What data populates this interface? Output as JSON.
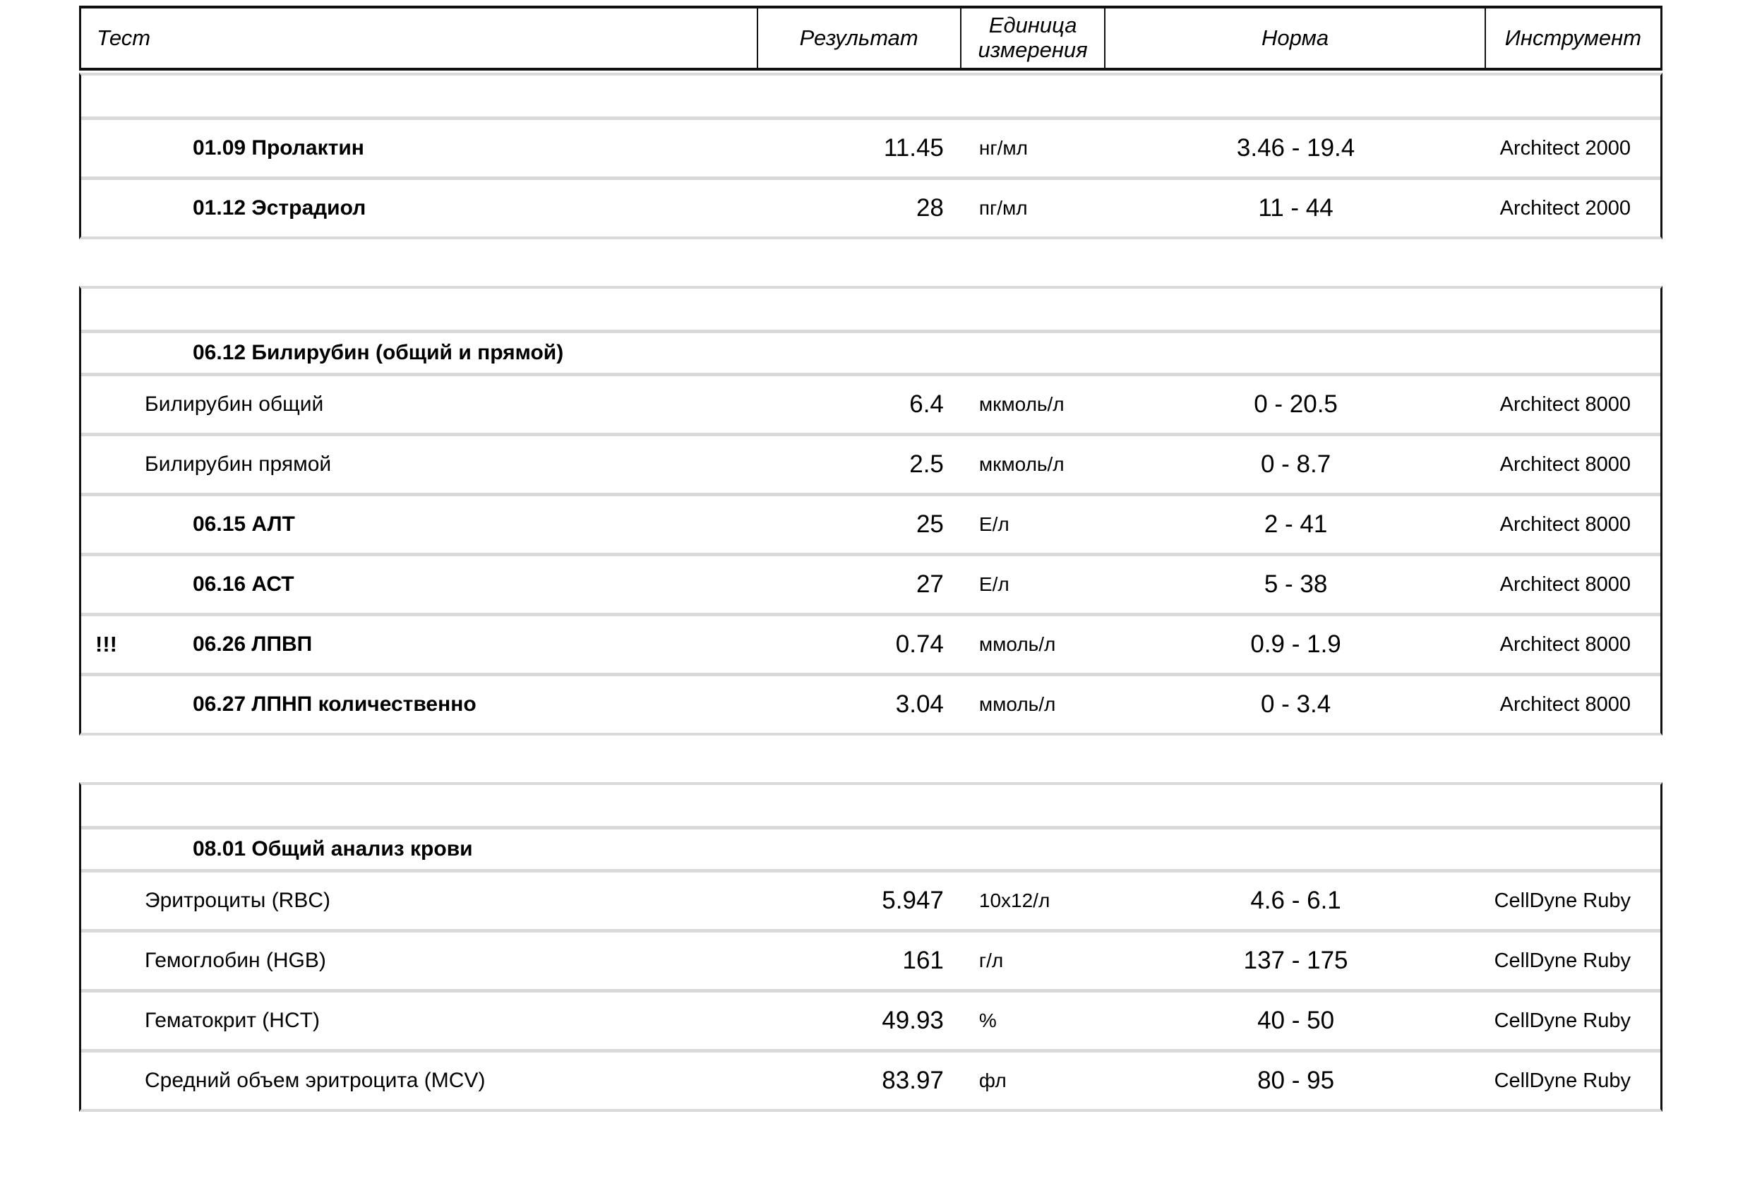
{
  "report": {
    "header": {
      "test": "Тест",
      "result": "Результат",
      "unit": "Единица измерения",
      "norm": "Норма",
      "instrument": "Инструмент"
    },
    "blocks": [
      {
        "rows": [
          {
            "type": "empty"
          },
          {
            "type": "test",
            "style": "code",
            "flag": "",
            "name": "01.09 Пролактин",
            "result": "11.45",
            "unit": "нг/мл",
            "norm": "3.46 - 19.4",
            "instrument": "Architect 2000"
          },
          {
            "type": "test",
            "style": "code",
            "flag": "",
            "name": "01.12 Эстрадиол",
            "result": "28",
            "unit": "пг/мл",
            "norm": "11 - 44",
            "instrument": "Architect 2000"
          }
        ]
      },
      {
        "rows": [
          {
            "type": "empty"
          },
          {
            "type": "section",
            "name": "06.12 Билирубин (общий и прямой)"
          },
          {
            "type": "test",
            "style": "sub",
            "flag": "",
            "name": "Билирубин общий",
            "result": "6.4",
            "unit": "мкмоль/л",
            "norm": "0 - 20.5",
            "instrument": "Architect 8000"
          },
          {
            "type": "test",
            "style": "sub",
            "flag": "",
            "name": "Билирубин прямой",
            "result": "2.5",
            "unit": "мкмоль/л",
            "norm": "0 - 8.7",
            "instrument": "Architect 8000"
          },
          {
            "type": "test",
            "style": "code",
            "flag": "",
            "name": "06.15 АЛТ",
            "result": "25",
            "unit": "Е/л",
            "norm": "2 - 41",
            "instrument": "Architect 8000"
          },
          {
            "type": "test",
            "style": "code",
            "flag": "",
            "name": "06.16 АСТ",
            "result": "27",
            "unit": "Е/л",
            "norm": "5 - 38",
            "instrument": "Architect 8000"
          },
          {
            "type": "test",
            "style": "code",
            "flag": "!!!",
            "name": "06.26 ЛПВП",
            "result": "0.74",
            "unit": "ммоль/л",
            "norm": "0.9 - 1.9",
            "instrument": "Architect 8000"
          },
          {
            "type": "test",
            "style": "code",
            "flag": "",
            "name": "06.27 ЛПНП количественно",
            "result": "3.04",
            "unit": "ммоль/л",
            "norm": "0 - 3.4",
            "instrument": "Architect 8000"
          }
        ]
      },
      {
        "rows": [
          {
            "type": "empty"
          },
          {
            "type": "section",
            "name": "08.01 Общий анализ крови"
          },
          {
            "type": "test",
            "style": "sub",
            "flag": "",
            "name": "Эритроциты (RBC)",
            "result": "5.947",
            "unit": "10х12/л",
            "norm": "4.6 - 6.1",
            "instrument": "CellDyne Ruby"
          },
          {
            "type": "test",
            "style": "sub",
            "flag": "",
            "name": "Гемоглобин (HGB)",
            "result": "161",
            "unit": "г/л",
            "norm": "137 - 175",
            "instrument": "CellDyne Ruby"
          },
          {
            "type": "test",
            "style": "sub",
            "flag": "",
            "name": "Гематокрит (HCT)",
            "result": "49.93",
            "unit": "%",
            "norm": "40 - 50",
            "instrument": "CellDyne Ruby"
          },
          {
            "type": "test",
            "style": "sub",
            "flag": "",
            "name": "Средний объем эритроцита (MCV)",
            "result": "83.97",
            "unit": "фл",
            "norm": "80 - 95",
            "instrument": "CellDyne Ruby"
          }
        ]
      }
    ],
    "colors": {
      "table_border": "#111111",
      "row_separator": "#d9d9d9",
      "text": "#000000",
      "background": "#ffffff"
    }
  }
}
